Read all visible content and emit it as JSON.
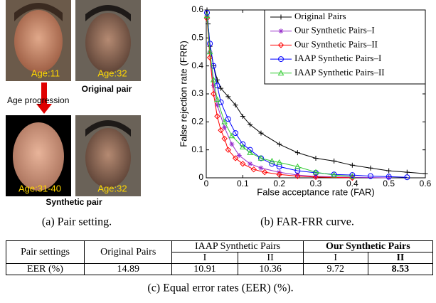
{
  "panel_a": {
    "photos": [
      {
        "label": "Age:11"
      },
      {
        "label": "Age:32"
      },
      {
        "label": "Age:31-40"
      },
      {
        "label": "Age:32"
      }
    ],
    "original_label": "Original pair",
    "arrow_label": "Age progression",
    "synthetic_label": "Synthetic pair",
    "caption": "(a)  Pair setting."
  },
  "chart_data": {
    "type": "line",
    "xlabel": "False acceptance rate (FAR)",
    "ylabel": "False rejection rate (FRR)",
    "xlim": [
      0,
      0.6
    ],
    "ylim": [
      0,
      0.6
    ],
    "xticks": [
      0,
      0.1,
      0.2,
      0.3,
      0.4,
      0.5,
      0.6
    ],
    "yticks": [
      0,
      0.1,
      0.2,
      0.3,
      0.4,
      0.5,
      0.6
    ],
    "legend": "upper right",
    "caption": "(b)  FAR-FRR curve.",
    "series": [
      {
        "name": "Original Pairs",
        "color": "#000000",
        "marker": "plus",
        "x": [
          0.002,
          0.005,
          0.01,
          0.02,
          0.03,
          0.04,
          0.06,
          0.08,
          0.1,
          0.12,
          0.15,
          0.2,
          0.25,
          0.3,
          0.35,
          0.4,
          0.45,
          0.5,
          0.55,
          0.6
        ],
        "values": [
          0.6,
          0.55,
          0.47,
          0.4,
          0.35,
          0.32,
          0.29,
          0.26,
          0.22,
          0.19,
          0.16,
          0.12,
          0.09,
          0.07,
          0.06,
          0.045,
          0.035,
          0.025,
          0.02,
          0.015
        ]
      },
      {
        "name": "Our Synthetic Pairs–I",
        "color": "#9933cc",
        "marker": "star",
        "x": [
          0.002,
          0.01,
          0.02,
          0.03,
          0.05,
          0.07,
          0.09,
          0.12,
          0.15,
          0.2,
          0.25,
          0.3,
          0.4,
          0.5
        ],
        "values": [
          0.58,
          0.45,
          0.33,
          0.26,
          0.18,
          0.12,
          0.08,
          0.05,
          0.035,
          0.02,
          0.01,
          0.005,
          0.002,
          0
        ]
      },
      {
        "name": "Our Synthetic Pairs–II",
        "color": "#ff0000",
        "marker": "diamond",
        "x": [
          0.002,
          0.01,
          0.02,
          0.03,
          0.04,
          0.05,
          0.06,
          0.08,
          0.1,
          0.13,
          0.16,
          0.2,
          0.25,
          0.3,
          0.4
        ],
        "values": [
          0.57,
          0.43,
          0.3,
          0.22,
          0.17,
          0.14,
          0.1,
          0.07,
          0.05,
          0.03,
          0.02,
          0.012,
          0.006,
          0.003,
          0
        ]
      },
      {
        "name": "IAAP Synthetic Pairs–I",
        "color": "#0000ff",
        "marker": "circle",
        "x": [
          0.002,
          0.01,
          0.02,
          0.03,
          0.04,
          0.06,
          0.08,
          0.1,
          0.12,
          0.15,
          0.18,
          0.2,
          0.25,
          0.3,
          0.35,
          0.4,
          0.45,
          0.5,
          0.55
        ],
        "values": [
          0.59,
          0.48,
          0.4,
          0.33,
          0.27,
          0.21,
          0.16,
          0.12,
          0.1,
          0.07,
          0.05,
          0.04,
          0.025,
          0.018,
          0.012,
          0.01,
          0.006,
          0.004,
          0.002
        ]
      },
      {
        "name": "IAAP Synthetic Pairs–II",
        "color": "#33cc33",
        "marker": "triangle",
        "x": [
          0.002,
          0.01,
          0.02,
          0.03,
          0.05,
          0.07,
          0.1,
          0.12,
          0.15,
          0.18,
          0.2,
          0.25,
          0.3,
          0.35,
          0.4
        ],
        "values": [
          0.58,
          0.45,
          0.35,
          0.28,
          0.2,
          0.15,
          0.11,
          0.09,
          0.07,
          0.06,
          0.055,
          0.04,
          0.02,
          0.01,
          0.005
        ]
      }
    ]
  },
  "table": {
    "header": [
      "Pair settings",
      "Original Pairs",
      "IAAP Synthetic Pairs",
      "Our Synthetic Pairs"
    ],
    "subheader": [
      "I",
      "II",
      "I",
      "II"
    ],
    "rows": [
      [
        "EER (%)",
        14.89,
        10.91,
        10.36,
        9.72,
        8.53
      ]
    ],
    "caption": "(c)  Equal error rates (EER) (%)."
  }
}
